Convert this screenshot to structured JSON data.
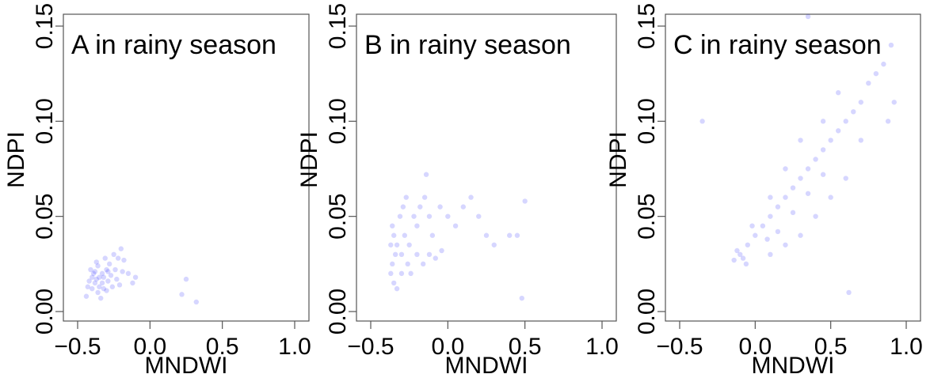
{
  "style": {
    "point_color": "#1a1aff",
    "point_opacity": 0.18,
    "frame_color": "#555555",
    "text_color": "#000000"
  },
  "chart_data": [
    {
      "type": "scatter",
      "panel_title": "A in rainy season",
      "xlabel": "MNDWI",
      "ylabel": "NDPI",
      "xlim": [
        -0.5,
        1.0
      ],
      "ylim": [
        0.0,
        0.15
      ],
      "xticks": [
        "-0.5",
        "0.0",
        "0.5",
        "1.0"
      ],
      "yticks": [
        "0.00",
        "0.05",
        "0.10",
        "0.15"
      ],
      "grid": false,
      "description": "dense cloud centered near MNDWI -0.38, NDPI 0.015",
      "points": [
        [
          -0.38,
          0.015
        ],
        [
          -0.35,
          0.018
        ],
        [
          -0.4,
          0.012
        ],
        [
          -0.33,
          0.02
        ],
        [
          -0.36,
          0.01
        ],
        [
          -0.42,
          0.016
        ],
        [
          -0.3,
          0.022
        ],
        [
          -0.28,
          0.025
        ],
        [
          -0.25,
          0.03
        ],
        [
          -0.22,
          0.028
        ],
        [
          -0.2,
          0.033
        ],
        [
          -0.18,
          0.027
        ],
        [
          -0.15,
          0.02
        ],
        [
          -0.12,
          0.015
        ],
        [
          -0.1,
          0.018
        ],
        [
          0.25,
          0.017
        ],
        [
          0.22,
          0.009
        ],
        [
          0.32,
          0.005
        ],
        [
          -0.44,
          0.008
        ],
        [
          -0.41,
          0.022
        ],
        [
          -0.37,
          0.026
        ],
        [
          -0.32,
          0.012
        ],
        [
          -0.29,
          0.016
        ],
        [
          -0.34,
          0.007
        ],
        [
          -0.39,
          0.02
        ],
        [
          -0.36,
          0.024
        ],
        [
          -0.31,
          0.028
        ],
        [
          -0.27,
          0.019
        ],
        [
          -0.24,
          0.022
        ],
        [
          -0.21,
          0.014
        ],
        [
          -0.43,
          0.013
        ],
        [
          -0.35,
          0.013
        ],
        [
          -0.37,
          0.017
        ],
        [
          -0.33,
          0.015
        ],
        [
          -0.3,
          0.011
        ],
        [
          -0.26,
          0.013
        ],
        [
          -0.4,
          0.018
        ],
        [
          -0.38,
          0.021
        ],
        [
          -0.32,
          0.018
        ],
        [
          -0.29,
          0.021
        ],
        [
          -0.23,
          0.017
        ],
        [
          -0.19,
          0.021
        ]
      ]
    },
    {
      "type": "scatter",
      "panel_title": "B in rainy season",
      "xlabel": "MNDWI",
      "ylabel": "NDPI",
      "xlim": [
        -0.5,
        1.0
      ],
      "ylim": [
        0.0,
        0.15
      ],
      "xticks": [
        "-0.5",
        "0.0",
        "0.5",
        "1.0"
      ],
      "yticks": [
        "0.00",
        "0.05",
        "0.10",
        "0.15"
      ],
      "grid": false,
      "description": "dense cloud near MNDWI -0.35, NDPI 0.025 spreading toward 0.2, 0.06",
      "points": [
        [
          -0.36,
          0.025
        ],
        [
          -0.34,
          0.03
        ],
        [
          -0.37,
          0.02
        ],
        [
          -0.33,
          0.035
        ],
        [
          -0.35,
          0.04
        ],
        [
          -0.36,
          0.045
        ],
        [
          -0.3,
          0.03
        ],
        [
          -0.28,
          0.04
        ],
        [
          -0.25,
          0.035
        ],
        [
          -0.22,
          0.05
        ],
        [
          -0.2,
          0.045
        ],
        [
          -0.18,
          0.055
        ],
        [
          -0.15,
          0.06
        ],
        [
          -0.12,
          0.05
        ],
        [
          -0.1,
          0.04
        ],
        [
          -0.05,
          0.055
        ],
        [
          0.0,
          0.05
        ],
        [
          0.05,
          0.045
        ],
        [
          0.1,
          0.055
        ],
        [
          0.15,
          0.06
        ],
        [
          0.2,
          0.05
        ],
        [
          0.25,
          0.04
        ],
        [
          0.3,
          0.035
        ],
        [
          0.4,
          0.04
        ],
        [
          0.45,
          0.04
        ],
        [
          0.5,
          0.058
        ],
        [
          0.48,
          0.007
        ],
        [
          -0.14,
          0.072
        ],
        [
          -0.3,
          0.02
        ],
        [
          -0.26,
          0.025
        ],
        [
          -0.24,
          0.02
        ],
        [
          -0.2,
          0.03
        ],
        [
          -0.16,
          0.025
        ],
        [
          -0.12,
          0.03
        ],
        [
          -0.08,
          0.028
        ],
        [
          -0.04,
          0.032
        ],
        [
          -0.37,
          0.035
        ],
        [
          -0.35,
          0.015
        ],
        [
          -0.33,
          0.012
        ],
        [
          -0.31,
          0.05
        ],
        [
          -0.29,
          0.055
        ],
        [
          -0.27,
          0.06
        ]
      ]
    },
    {
      "type": "scatter",
      "panel_title": "C in rainy season",
      "xlabel": "MNDWI",
      "ylabel": "NDPI",
      "xlim": [
        -0.5,
        1.0
      ],
      "ylim": [
        0.0,
        0.15
      ],
      "xticks": [
        "-0.5",
        "0.0",
        "0.5",
        "1.0"
      ],
      "yticks": [
        "0.00",
        "0.05",
        "0.10",
        "0.15"
      ],
      "grid": false,
      "description": "strong positive trend from MNDWI -0.1, NDPI 0.03 to MNDWI 0.9, NDPI 0.14",
      "points": [
        [
          -0.1,
          0.03
        ],
        [
          -0.08,
          0.028
        ],
        [
          -0.12,
          0.032
        ],
        [
          -0.05,
          0.035
        ],
        [
          -0.06,
          0.025
        ],
        [
          -0.14,
          0.027
        ],
        [
          0.0,
          0.04
        ],
        [
          0.05,
          0.045
        ],
        [
          0.1,
          0.05
        ],
        [
          0.15,
          0.055
        ],
        [
          0.2,
          0.06
        ],
        [
          0.25,
          0.065
        ],
        [
          0.3,
          0.07
        ],
        [
          0.35,
          0.075
        ],
        [
          0.4,
          0.08
        ],
        [
          0.45,
          0.085
        ],
        [
          0.5,
          0.09
        ],
        [
          0.55,
          0.095
        ],
        [
          0.6,
          0.1
        ],
        [
          0.65,
          0.105
        ],
        [
          0.7,
          0.11
        ],
        [
          0.75,
          0.12
        ],
        [
          0.8,
          0.125
        ],
        [
          0.85,
          0.13
        ],
        [
          0.9,
          0.14
        ],
        [
          0.92,
          0.11
        ],
        [
          0.88,
          0.1
        ],
        [
          0.7,
          0.09
        ],
        [
          0.6,
          0.07
        ],
        [
          0.5,
          0.06
        ],
        [
          0.4,
          0.05
        ],
        [
          0.3,
          0.04
        ],
        [
          0.2,
          0.035
        ],
        [
          0.1,
          0.03
        ],
        [
          -0.35,
          0.1
        ],
        [
          0.62,
          0.01
        ],
        [
          0.35,
          0.155
        ],
        [
          0.1,
          0.06
        ],
        [
          0.2,
          0.075
        ],
        [
          0.3,
          0.09
        ],
        [
          0.45,
          0.1
        ],
        [
          0.55,
          0.115
        ],
        [
          -0.02,
          0.045
        ],
        [
          0.08,
          0.038
        ],
        [
          0.15,
          0.042
        ],
        [
          0.25,
          0.052
        ],
        [
          0.35,
          0.062
        ],
        [
          0.45,
          0.072
        ]
      ]
    }
  ]
}
